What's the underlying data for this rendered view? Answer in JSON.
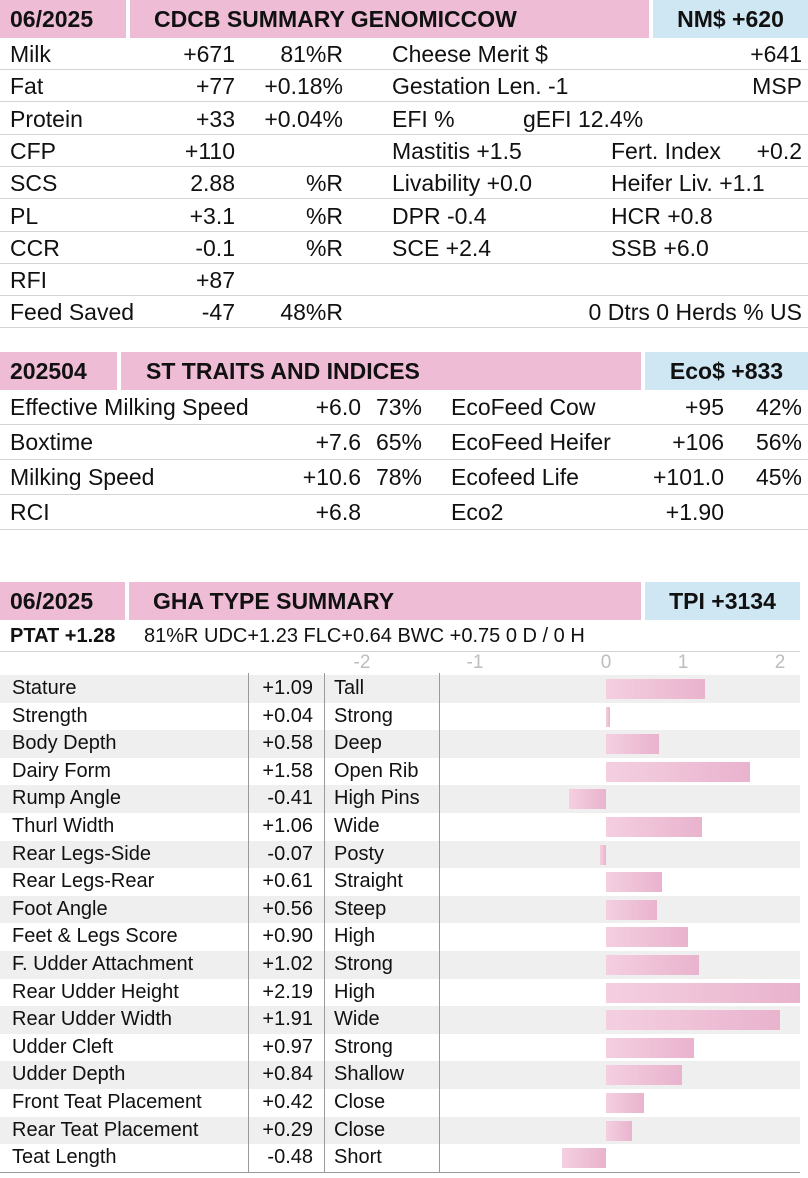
{
  "section1": {
    "date": "06/2025",
    "title": "CDCB SUMMARY GENOMICCOW",
    "index": "NM$ +620",
    "rows": [
      {
        "c1": "Milk",
        "c2": "+671",
        "c3": "81%R",
        "c4": "Cheese Merit $",
        "c5": "+641"
      },
      {
        "c1": "Fat",
        "c2": "+77",
        "c3": "+0.18%",
        "c4": "Gestation Len. -1",
        "c5": "MSP"
      },
      {
        "c1": "Protein",
        "c2": "+33",
        "c3": "+0.04%",
        "c4": "EFI  %",
        "c4b": "gEFI  12.4%"
      },
      {
        "c1": "CFP",
        "c2": "+110",
        "c4": "Mastitis   +1.5",
        "c6": "Fert. Index",
        "c7": "+0.2"
      },
      {
        "c1": "SCS",
        "c2": "2.88",
        "c3": "%R",
        "c4": "Livability   +0.0",
        "c6": "Heifer Liv.  +1.1"
      },
      {
        "c1": "PL",
        "c2": "+3.1",
        "c3": "%R",
        "c4": "DPR   -0.4",
        "c6": "HCR  +0.8"
      },
      {
        "c1": "CCR",
        "c2": "-0.1",
        "c3": "%R",
        "c4": "SCE   +2.4",
        "c6": "SSB  +6.0"
      },
      {
        "c1": "RFI",
        "c2": "+87"
      },
      {
        "c1": "Feed Saved",
        "c2": "-47",
        "c3": "48%R",
        "c5": "0 Dtrs  0 Herds  % US"
      }
    ]
  },
  "section2": {
    "date": "202504",
    "title": "ST TRAITS AND INDICES",
    "index": "Eco$ +833",
    "rows": [
      {
        "c1": "Effective Milking Speed",
        "c2": "+6.0",
        "c3": "73%",
        "c4": "EcoFeed Cow",
        "c5": "+95",
        "c6": "42%"
      },
      {
        "c1": "Boxtime",
        "c2": "+7.6",
        "c3": "65%",
        "c4": "EcoFeed Heifer",
        "c5": "+106",
        "c6": "56%"
      },
      {
        "c1": "Milking Speed",
        "c2": "+10.6",
        "c3": "78%",
        "c4": "Ecofeed Life",
        "c5": "+101.0",
        "c6": "45%"
      },
      {
        "c1": "RCI",
        "c2": "+6.8",
        "c4": "Eco2",
        "c5": "+1.90"
      }
    ]
  },
  "section3": {
    "date": "06/2025",
    "title": "GHA TYPE SUMMARY",
    "index": "TPI +3134",
    "ptat": "PTAT +1.28",
    "summary": "81%R  UDC+1.23  FLC+0.64  BWC +0.75  0 D /  0 H",
    "axis_ticks": [
      "-2",
      "-1",
      "0",
      "1",
      "2"
    ]
  },
  "chart_data": {
    "type": "bar",
    "title": "GHA TYPE SUMMARY",
    "xlim": [
      -2,
      2
    ],
    "categories": [
      "Stature",
      "Strength",
      "Body Depth",
      "Dairy Form",
      "Rump Angle",
      "Thurl Width",
      "Rear Legs-Side",
      "Rear Legs-Rear",
      "Foot Angle",
      "Feet & Legs Score",
      "F. Udder Attachment",
      "Rear Udder Height",
      "Rear Udder Width",
      "Udder Cleft",
      "Udder Depth",
      "Front Teat Placement",
      "Rear Teat Placement",
      "Teat Length"
    ],
    "values": [
      1.09,
      0.04,
      0.58,
      1.58,
      -0.41,
      1.06,
      -0.07,
      0.61,
      0.56,
      0.9,
      1.02,
      2.19,
      1.91,
      0.97,
      0.84,
      0.42,
      0.29,
      -0.48
    ],
    "value_labels": [
      "+1.09",
      "+0.04",
      "+0.58",
      "+1.58",
      "-0.41",
      "+1.06",
      "-0.07",
      "+0.61",
      "+0.56",
      "+0.90",
      "+1.02",
      "+2.19",
      "+1.91",
      "+0.97",
      "+0.84",
      "+0.42",
      "+0.29",
      "-0.48"
    ],
    "descriptors": [
      "Tall",
      "Strong",
      "Deep",
      "Open Rib",
      "High Pins",
      "Wide",
      "Posty",
      "Straight",
      "Steep",
      "High",
      "Strong",
      "High",
      "Wide",
      "Strong",
      "Shallow",
      "Close",
      "Close",
      "Short"
    ]
  }
}
